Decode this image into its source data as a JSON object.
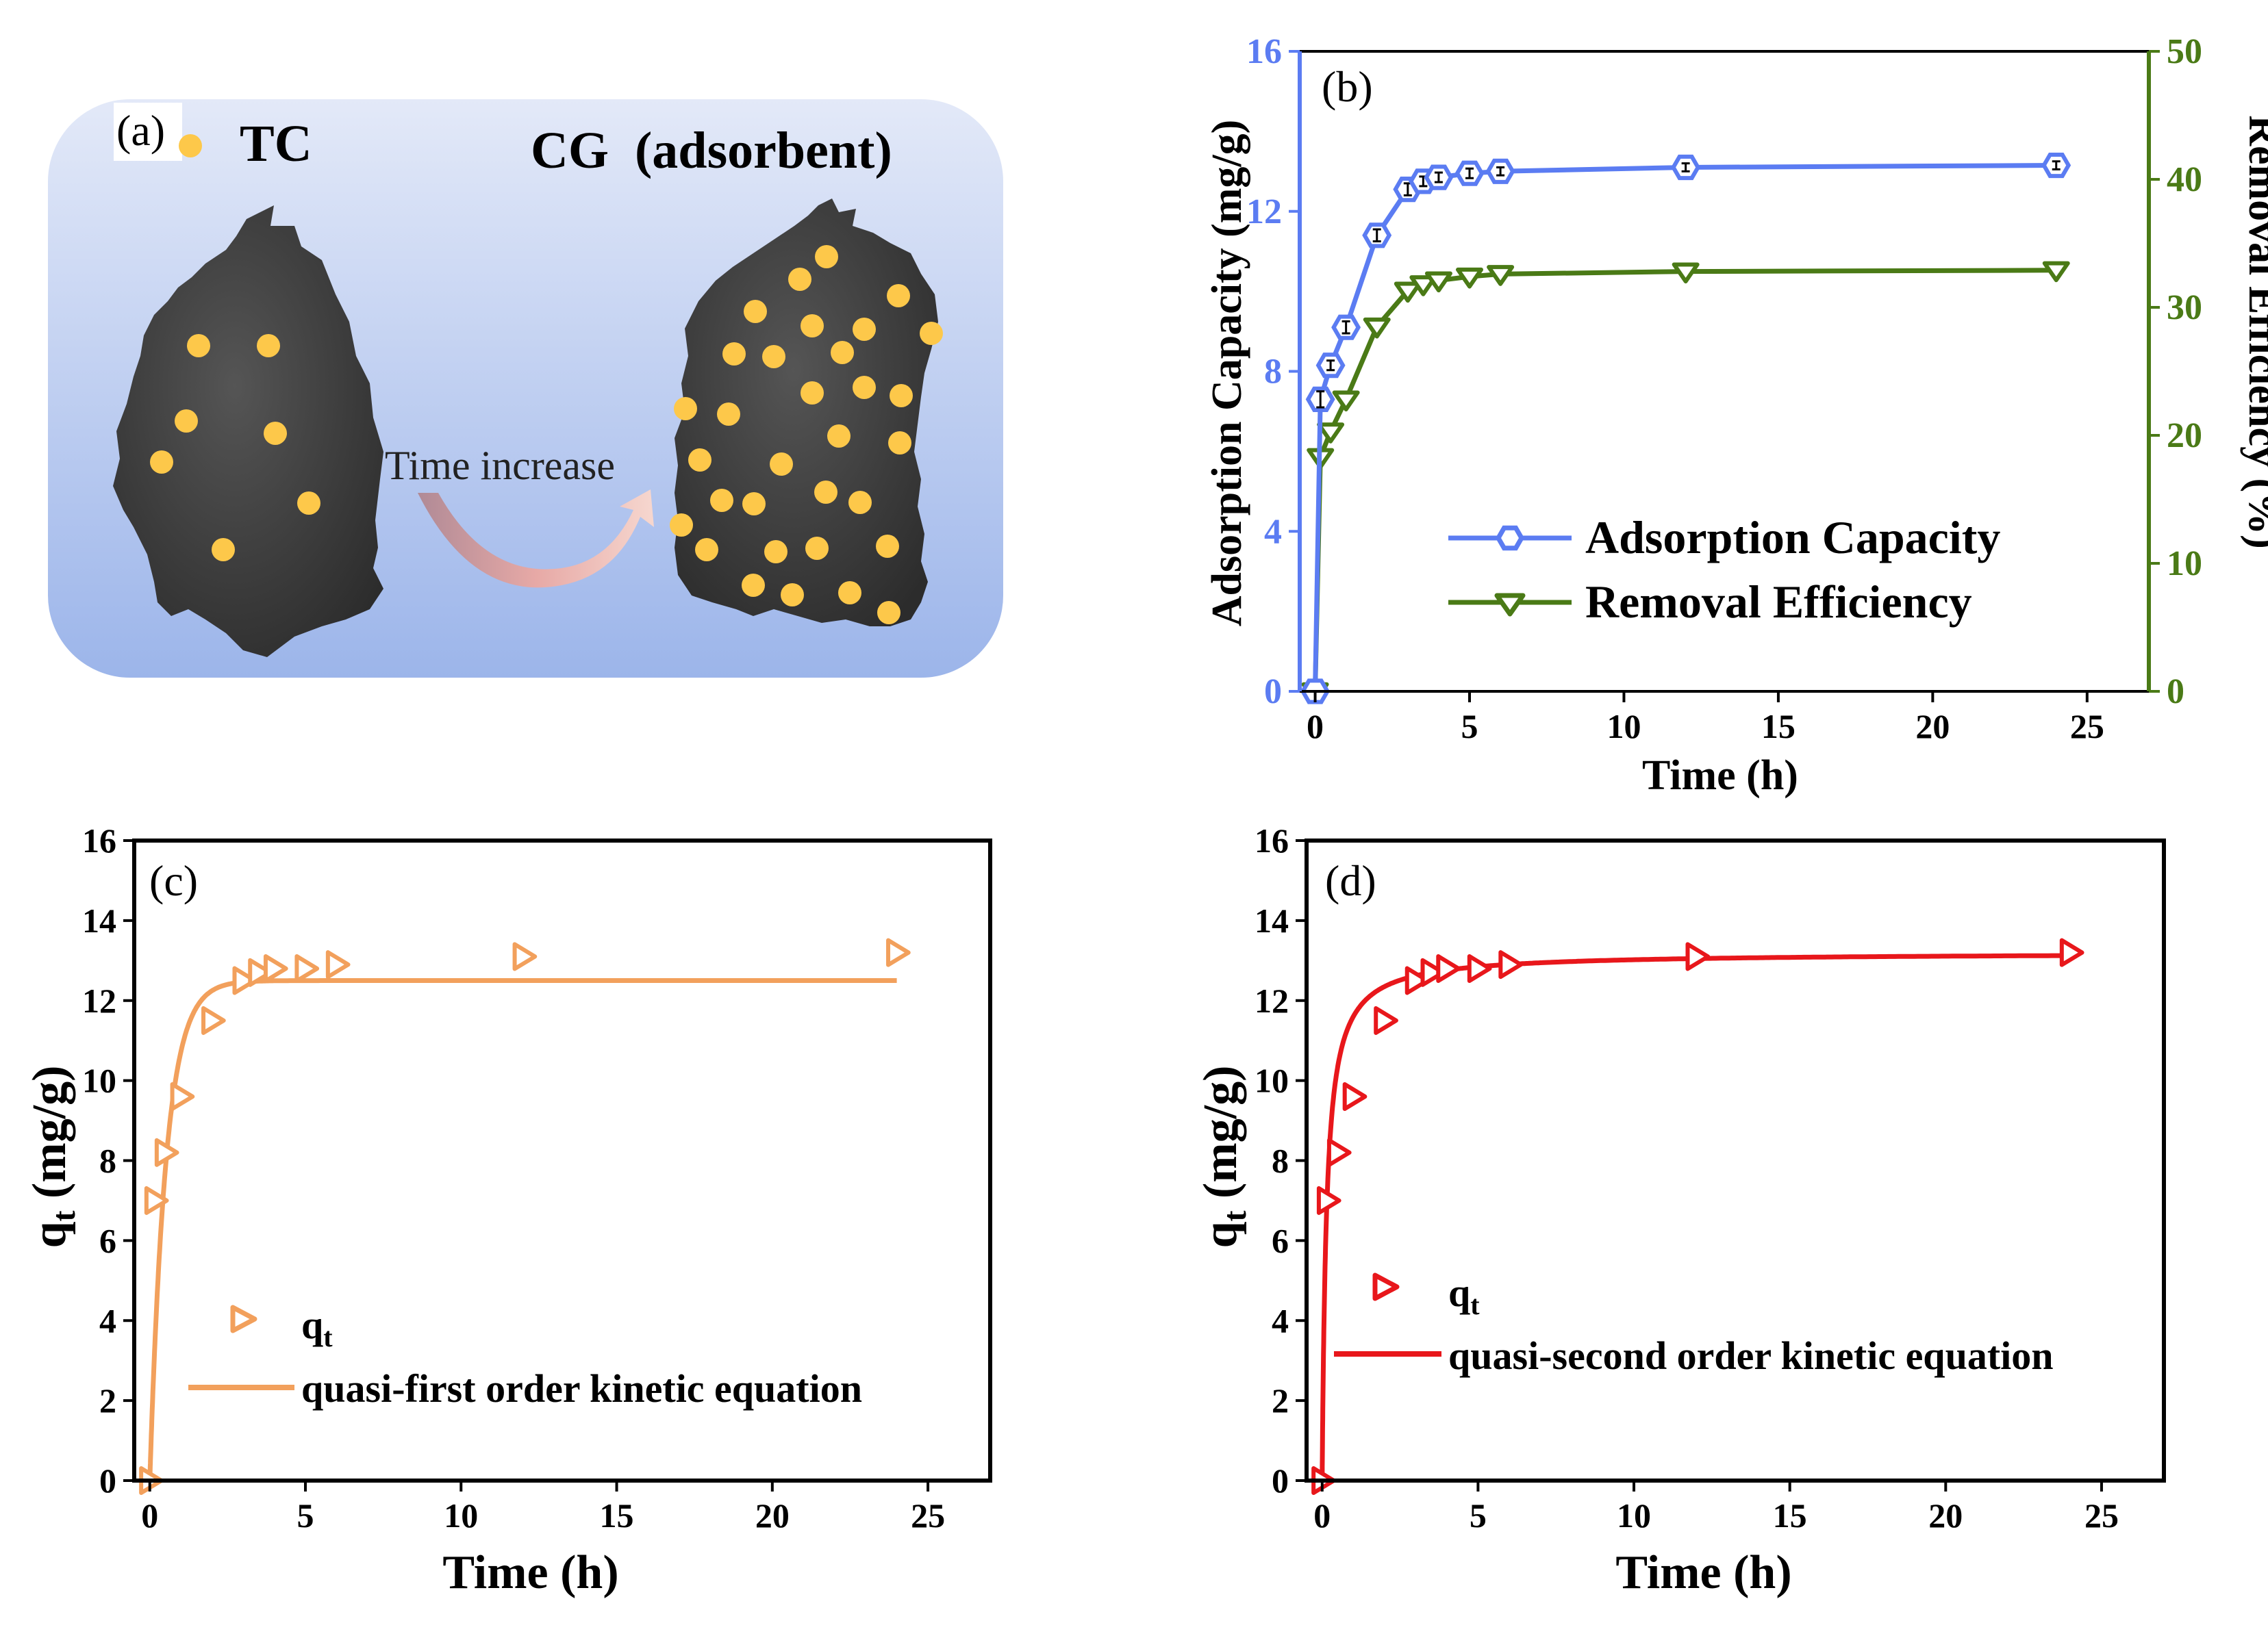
{
  "colors": {
    "blue": "#5b7cf2",
    "green": "#4a7a16",
    "orange": "#f2a05c",
    "red": "#e8171b",
    "black": "#000000",
    "schematic_bg_top": "#dfe6f8",
    "schematic_bg_bottom": "#9fb7ea",
    "particle": "#fdc84a",
    "rock": "#3d3d3d"
  },
  "panel_a": {
    "label": "(a)",
    "legend_label": "TC",
    "adsorbent_label": "CG  (adsorbent)",
    "arrow_label": "Time increase"
  },
  "chart_data": [
    {
      "id": "b",
      "type": "line",
      "label": "(b)",
      "xlabel": "Time (h)",
      "ylabel": "Adsorption Capacity (mg/g)",
      "y2label": "Removal Efficiency (%)",
      "xlim": [
        -0.5,
        27
      ],
      "ylim": [
        0,
        16
      ],
      "y2lim": [
        0,
        50
      ],
      "xticks": [
        0,
        5,
        10,
        15,
        20,
        25
      ],
      "yticks": [
        0,
        4,
        8,
        12,
        16
      ],
      "y2ticks": [
        0,
        10,
        20,
        30,
        40,
        50
      ],
      "legend_position": "center-right",
      "series": [
        {
          "name": "Adsorption Capacity",
          "axis": "left",
          "marker": "hexagon",
          "color": "#5b7cf2",
          "x": [
            0,
            0.17,
            0.5,
            1,
            2,
            3,
            3.5,
            4,
            5,
            6,
            12,
            24
          ],
          "y": [
            0,
            7.3,
            8.15,
            9.1,
            11.4,
            12.55,
            12.75,
            12.85,
            12.95,
            13.0,
            13.1,
            13.15
          ],
          "errors": [
            0,
            0.2,
            0.12,
            0.15,
            0.15,
            0.15,
            0.12,
            0.12,
            0.12,
            0.1,
            0.1,
            0.1
          ]
        },
        {
          "name": "Removal Efficiency",
          "axis": "right",
          "marker": "triangle-down",
          "color": "#4a7a16",
          "x": [
            0,
            0.17,
            0.5,
            1,
            2,
            3,
            3.5,
            4,
            5,
            6,
            12,
            24
          ],
          "y": [
            0,
            18.3,
            20.3,
            22.8,
            28.5,
            31.3,
            31.8,
            32.1,
            32.4,
            32.6,
            32.8,
            32.9
          ]
        }
      ]
    },
    {
      "id": "c",
      "type": "scatter",
      "label": "(c)",
      "xlabel": "Time (h)",
      "ylabel": "q",
      "ylabel_sub": "t",
      "ylabel_unit": " (mg/g)",
      "xlim": [
        -0.5,
        27
      ],
      "ylim": [
        0,
        16
      ],
      "xticks": [
        0,
        5,
        10,
        15,
        20,
        25
      ],
      "yticks": [
        0,
        2,
        4,
        6,
        8,
        10,
        12,
        14,
        16
      ],
      "legend_position": "lower-center",
      "series": [
        {
          "name": "q",
          "name_sub": "t",
          "marker": "triangle-right",
          "color": "#f2a05c",
          "x": [
            0,
            0.17,
            0.5,
            1,
            2,
            3,
            3.5,
            4,
            5,
            6,
            12,
            24
          ],
          "y": [
            0,
            7.0,
            8.2,
            9.6,
            11.5,
            12.5,
            12.7,
            12.8,
            12.8,
            12.9,
            13.1,
            13.2
          ]
        },
        {
          "name": "quasi-first order kinetic equation",
          "type": "line",
          "color": "#f2a05c",
          "model": "first-order",
          "qe": 12.5,
          "k": 1.95,
          "x_range": [
            0,
            24
          ]
        }
      ]
    },
    {
      "id": "d",
      "type": "scatter",
      "label": "(d)",
      "xlabel": "Time (h)",
      "ylabel": "q",
      "ylabel_sub": "t",
      "ylabel_unit": " (mg/g)",
      "xlim": [
        -0.5,
        27
      ],
      "ylim": [
        0,
        16
      ],
      "xticks": [
        0,
        5,
        10,
        15,
        20,
        25
      ],
      "yticks": [
        0,
        2,
        4,
        6,
        8,
        10,
        12,
        14,
        16
      ],
      "legend_position": "lower-center",
      "series": [
        {
          "name": "q",
          "name_sub": "t",
          "marker": "triangle-right",
          "color": "#e8171b",
          "x": [
            0,
            0.17,
            0.5,
            1,
            2,
            3,
            3.5,
            4,
            5,
            6,
            12,
            24
          ],
          "y": [
            0,
            7.0,
            8.2,
            9.6,
            11.5,
            12.5,
            12.7,
            12.8,
            12.8,
            12.9,
            13.1,
            13.2
          ]
        },
        {
          "name": "quasi-second order kinetic equation",
          "type": "line",
          "color": "#e8171b",
          "model": "second-order",
          "qe": 13.2,
          "k": 0.55,
          "x_range": [
            0,
            24
          ]
        }
      ]
    }
  ]
}
